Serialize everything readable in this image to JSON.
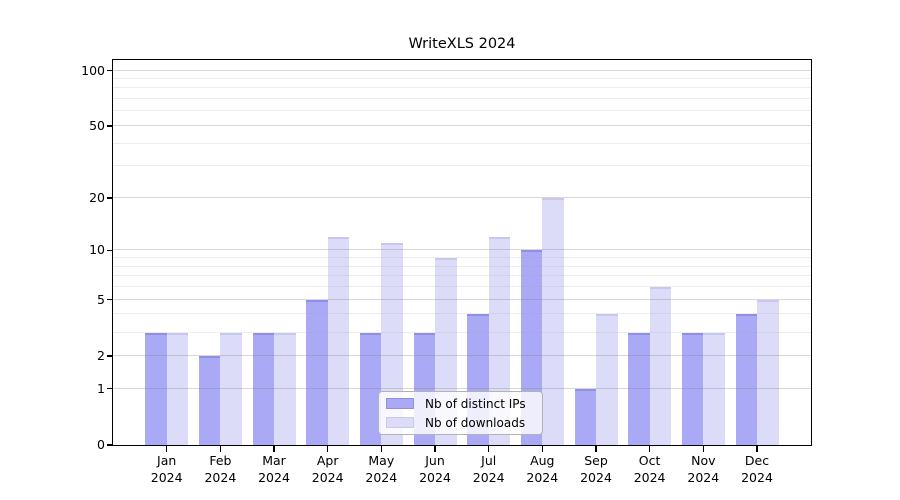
{
  "chart_data": {
    "type": "bar",
    "title": "WriteXLS 2024",
    "categories": [
      "Jan 2024",
      "Feb 2024",
      "Mar 2024",
      "Apr 2024",
      "May 2024",
      "Jun 2024",
      "Jul 2024",
      "Aug 2024",
      "Sep 2024",
      "Oct 2024",
      "Nov 2024",
      "Dec 2024"
    ],
    "series": [
      {
        "name": "Nb of distinct IPs",
        "color": "#a9a9f6",
        "edge_color": "#8f8fe4",
        "values": [
          3,
          2,
          3,
          5,
          3,
          3,
          4,
          10,
          1,
          3,
          3,
          4
        ]
      },
      {
        "name": "Nb of downloads",
        "color": "#dcdcf8",
        "edge_color": "#c8c8ef",
        "values": [
          3,
          3,
          3,
          12,
          11,
          9,
          12,
          20,
          4,
          6,
          3,
          5
        ]
      }
    ],
    "xlabel": "",
    "ylabel": "",
    "yscale": "log10(value+1)",
    "ylim": [
      0,
      114
    ],
    "yticks": [
      0,
      1,
      2,
      5,
      10,
      20,
      50,
      100
    ],
    "minor_gridlines": [
      3,
      4,
      6,
      7,
      8,
      9,
      30,
      40,
      60,
      70,
      80,
      90
    ],
    "grid": "horizontal",
    "legend_position": "lower center"
  },
  "colors": {
    "background": "#ffffff",
    "spine": "#000000",
    "text": "#000000",
    "major_grid": "rgba(130,130,130,0.32)",
    "minor_grid": "rgba(165,165,165,0.20)",
    "legend_border": "#b3b3b3",
    "legend_background": "rgba(255,255,255,0.8)"
  }
}
